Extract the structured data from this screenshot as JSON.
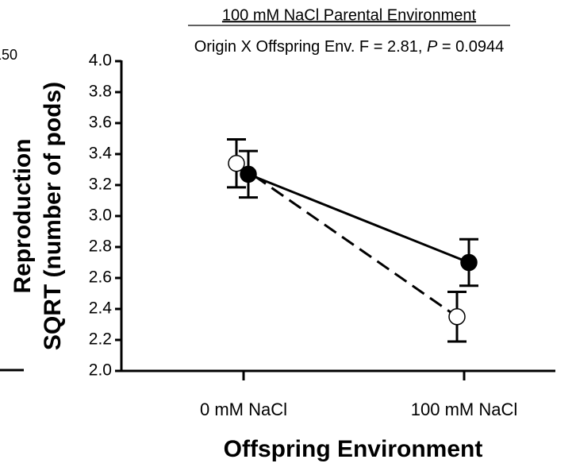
{
  "chart_data": {
    "type": "line",
    "title": "100 mM NaCl Parental Environment",
    "subtitle": [
      "Origin X Offspring Env. F = 2.81, ",
      "P",
      " = 0.0944"
    ],
    "edge_text": "150",
    "ylabel": [
      "Reproduction",
      "SQRT (number of pods)"
    ],
    "xlabel": "Offspring Environment",
    "categories": [
      "0 mM NaCl",
      "100 mM NaCl"
    ],
    "series": [
      {
        "color": "#000000",
        "marker": "open",
        "linestyle": "dashed",
        "values": [
          3.34,
          2.35
        ],
        "errors": [
          0.155,
          0.16
        ]
      },
      {
        "color": "#000000",
        "marker": "filled",
        "linestyle": "solid",
        "values": [
          3.27,
          2.7
        ],
        "errors": [
          0.15,
          0.15
        ]
      }
    ],
    "ylim": [
      2.0,
      4.0
    ],
    "yticks": [
      {
        "value": 2.0,
        "label": "2.0"
      },
      2.2,
      2.4,
      2.6,
      2.8,
      {
        "value": 3.0,
        "label": "3.0"
      },
      3.2,
      3.4,
      3.6,
      3.8,
      {
        "value": 4.0,
        "label": "4.0"
      }
    ]
  }
}
